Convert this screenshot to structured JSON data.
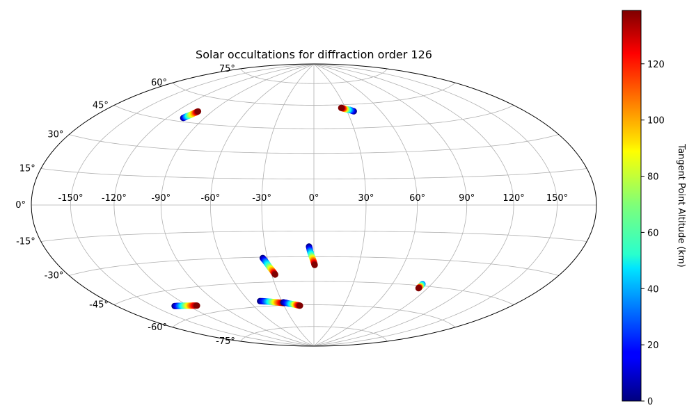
{
  "chart_data": {
    "type": "scatter",
    "projection": "hammer",
    "title": "Solar occultations for diffraction order 126",
    "xlabel": "",
    "ylabel": "",
    "grid": true,
    "longitude_tick_labels": [
      "-150°",
      "-120°",
      "-90°",
      "-60°",
      "-30°",
      "0°",
      "30°",
      "60°",
      "90°",
      "120°",
      "150°"
    ],
    "longitude_ticks": [
      -150,
      -120,
      -90,
      -60,
      -30,
      0,
      30,
      60,
      90,
      120,
      150
    ],
    "latitude_tick_labels": [
      "-75°",
      "-60°",
      "-45°",
      "-30°",
      "-15°",
      "0°",
      "15°",
      "30°",
      "45°",
      "60°",
      "75°"
    ],
    "latitude_ticks": [
      -75,
      -60,
      -45,
      -30,
      -15,
      0,
      15,
      30,
      45,
      60,
      75
    ],
    "colorbar": {
      "label": "Tangent Point Altitude (km)",
      "tick_labels": [
        "0",
        "20",
        "40",
        "60",
        "80",
        "100",
        "120"
      ],
      "ticks": [
        0,
        20,
        40,
        60,
        80,
        100,
        120
      ],
      "range": [
        0,
        139
      ],
      "colormap": "jet"
    },
    "series": [
      {
        "points": [
          {
            "lon": -107,
            "lat": 47,
            "alt": 0
          },
          {
            "lon": -106,
            "lat": 48,
            "alt": 35
          },
          {
            "lon": -104.5,
            "lat": 49,
            "alt": 70
          },
          {
            "lon": -103,
            "lat": 50.5,
            "alt": 105
          },
          {
            "lon": -102,
            "lat": 51.5,
            "alt": 139
          }
        ]
      },
      {
        "points": [
          {
            "lon": 36,
            "lat": 55.5,
            "alt": 0
          },
          {
            "lon": 33,
            "lat": 56.5,
            "alt": 35
          },
          {
            "lon": 30,
            "lat": 57,
            "alt": 70
          },
          {
            "lon": 28,
            "lat": 57.5,
            "alt": 105
          },
          {
            "lon": 26,
            "lat": 58,
            "alt": 139
          }
        ]
      },
      {
        "points": [
          {
            "lon": -3,
            "lat": -24,
            "alt": 0
          },
          {
            "lon": -2.3,
            "lat": -27,
            "alt": 35
          },
          {
            "lon": -1.3,
            "lat": -30,
            "alt": 70
          },
          {
            "lon": -0.3,
            "lat": -32.5,
            "alt": 105
          },
          {
            "lon": 0.5,
            "lat": -35,
            "alt": 139
          }
        ]
      },
      {
        "points": [
          {
            "lon": -33,
            "lat": -30.5,
            "alt": 0
          },
          {
            "lon": -31.5,
            "lat": -33,
            "alt": 35
          },
          {
            "lon": -30,
            "lat": -36,
            "alt": 70
          },
          {
            "lon": -28.5,
            "lat": -38.5,
            "alt": 105
          },
          {
            "lon": -27.5,
            "lat": -40.5,
            "alt": 139
          }
        ]
      },
      {
        "points": [
          {
            "lon": -50,
            "lat": -56.5,
            "alt": 0
          },
          {
            "lon": -44,
            "lat": -57,
            "alt": 35
          },
          {
            "lon": -39,
            "lat": -57.5,
            "alt": 70
          },
          {
            "lon": -34,
            "lat": -58,
            "alt": 105
          },
          {
            "lon": -29,
            "lat": -58.5,
            "alt": 139
          }
        ]
      },
      {
        "points": [
          {
            "lon": -29,
            "lat": -58,
            "alt": 0
          },
          {
            "lon": -24,
            "lat": -59,
            "alt": 35
          },
          {
            "lon": -20,
            "lat": -59.5,
            "alt": 70
          },
          {
            "lon": -17,
            "lat": -60,
            "alt": 105
          },
          {
            "lon": -14,
            "lat": -60.5,
            "alt": 139
          }
        ]
      },
      {
        "points": [
          {
            "lon": -132,
            "lat": -53,
            "alt": 0
          },
          {
            "lon": -127,
            "lat": -53.5,
            "alt": 35
          },
          {
            "lon": -122,
            "lat": -54,
            "alt": 70
          },
          {
            "lon": -117,
            "lat": -54.5,
            "alt": 105
          },
          {
            "lon": -112,
            "lat": -55,
            "alt": 139
          }
        ]
      },
      {
        "points": [
          {
            "lon": 83,
            "lat": -44,
            "alt": 35
          },
          {
            "lon": 83,
            "lat": -45.5,
            "alt": 80
          },
          {
            "lon": 83,
            "lat": -46.5,
            "alt": 139
          }
        ]
      }
    ]
  }
}
